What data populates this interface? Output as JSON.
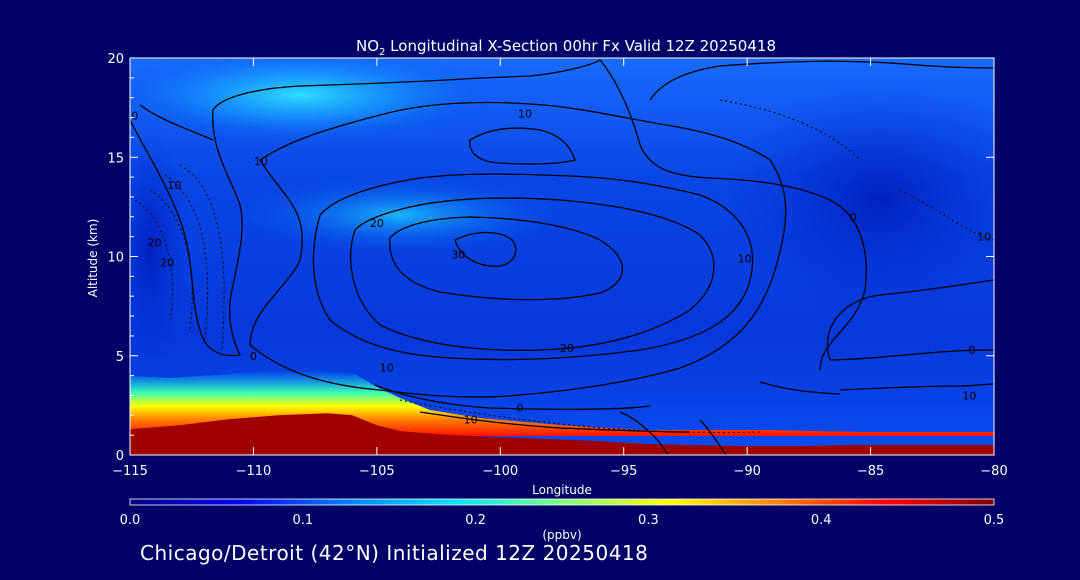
{
  "chart_data": {
    "type": "heatmap",
    "title_prefix": "NO",
    "title_subscript": "2",
    "title_rest": " Longitudinal X-Section 00hr  Fx Valid 12Z 20250418",
    "xlabel": "Longitude",
    "ylabel": "Altitude (km)",
    "xlim": [
      -115,
      -80
    ],
    "ylim": [
      0,
      20
    ],
    "x_ticks": [
      -115,
      -110,
      -105,
      -100,
      -95,
      -90,
      -85,
      -80
    ],
    "x_tick_labels": [
      "−115",
      "−110",
      "−105",
      "−100",
      "−95",
      "−90",
      "−85",
      "−80"
    ],
    "y_ticks": [
      0,
      5,
      10,
      15,
      20
    ],
    "y_tick_labels": [
      "0",
      "5",
      "10",
      "15",
      "20"
    ],
    "colorbar": {
      "range": [
        0.0,
        0.5
      ],
      "ticks": [
        0.0,
        0.1,
        0.2,
        0.3,
        0.4,
        0.5
      ],
      "tick_labels": [
        "0.0",
        "0.1",
        "0.2",
        "0.3",
        "0.4",
        "0.5"
      ],
      "unit": "(ppbv)",
      "colors": [
        "#00007f",
        "#0000ff",
        "#0080ff",
        "#00e5ff",
        "#80ff80",
        "#ffff00",
        "#ff8000",
        "#ff0000",
        "#800000"
      ]
    },
    "terrain_km": [
      [
        -115,
        1.3
      ],
      [
        -113,
        1.5
      ],
      [
        -111,
        1.8
      ],
      [
        -109,
        2.0
      ],
      [
        -107,
        2.1
      ],
      [
        -106,
        2.0
      ],
      [
        -105,
        1.5
      ],
      [
        -104,
        1.2
      ],
      [
        -102,
        1.0
      ],
      [
        -100,
        0.9
      ],
      [
        -98,
        0.8
      ],
      [
        -96,
        0.7
      ],
      [
        -94,
        0.55
      ],
      [
        -92,
        0.5
      ],
      [
        -90,
        0.45
      ],
      [
        -88,
        0.45
      ],
      [
        -86,
        0.5
      ],
      [
        -84,
        0.5
      ],
      [
        -82,
        0.5
      ],
      [
        -80,
        0.5
      ]
    ],
    "contour_labels": [
      {
        "text": "0",
        "lon": -114.8,
        "alt": 17.1
      },
      {
        "text": "10",
        "lon": -113.2,
        "alt": 13.6
      },
      {
        "text": "10",
        "lon": -109.7,
        "alt": 14.8
      },
      {
        "text": "20",
        "lon": -105.0,
        "alt": 11.7
      },
      {
        "text": "10",
        "lon": -99.0,
        "alt": 17.2
      },
      {
        "text": "30",
        "lon": -101.7,
        "alt": 10.1
      },
      {
        "text": "20",
        "lon": -97.3,
        "alt": 5.4
      },
      {
        "text": "10",
        "lon": -104.6,
        "alt": 4.4
      },
      {
        "text": "0",
        "lon": -110.0,
        "alt": 5.0
      },
      {
        "text": "0",
        "lon": -99.2,
        "alt": 2.4
      },
      {
        "text": "10",
        "lon": -101.2,
        "alt": 1.8
      },
      {
        "text": "10",
        "lon": -90.1,
        "alt": 9.9
      },
      {
        "text": "0",
        "lon": -85.7,
        "alt": 12.0
      },
      {
        "text": "0",
        "lon": -80.9,
        "alt": 5.3
      },
      {
        "text": "10",
        "lon": -81.0,
        "alt": 3.0
      },
      {
        "text": "10",
        "lon": -80.4,
        "alt": 11.0
      },
      {
        "text": "20",
        "lon": -114.0,
        "alt": 10.7
      },
      {
        "text": "20",
        "lon": -113.5,
        "alt": 9.7
      }
    ]
  },
  "footer_text": "Chicago/Detroit (42°N) Initialized 12Z 20250418"
}
